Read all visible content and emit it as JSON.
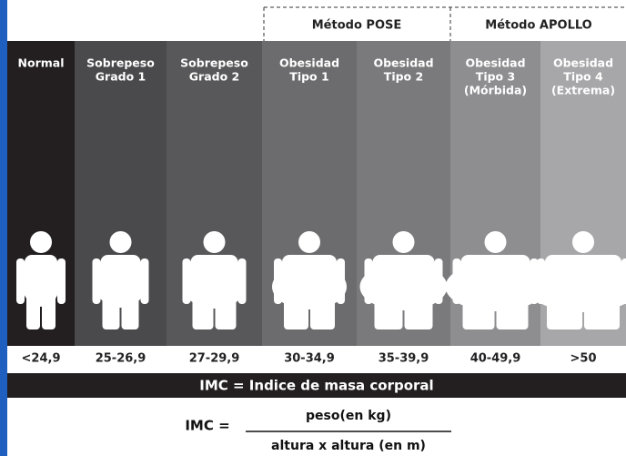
{
  "groups": [
    {
      "label": "Método POSE"
    },
    {
      "label": "Método APOLLO"
    }
  ],
  "columns": [
    {
      "label": [
        "Normal"
      ],
      "range": "<24,9"
    },
    {
      "label": [
        "Sobrepeso",
        "Grado 1"
      ],
      "range": "25-26,9"
    },
    {
      "label": [
        "Sobrepeso",
        "Grado 2"
      ],
      "range": "27-29,9"
    },
    {
      "label": [
        "Obesidad",
        "Tipo 1"
      ],
      "range": "30-34,9"
    },
    {
      "label": [
        "Obesidad",
        "Tipo 2"
      ],
      "range": "35-39,9"
    },
    {
      "label": [
        "Obesidad",
        "Tipo 3",
        "(Mórbida)"
      ],
      "range": "40-49,9"
    },
    {
      "label": [
        "Obesidad",
        "Tipo 4",
        "(Extrema)"
      ],
      "range": ">50"
    }
  ],
  "footer": {
    "title": "IMC = Indice de masa corporal"
  },
  "formula": {
    "lhs": "IMC =",
    "numerator": "peso(en kg)",
    "denominator": "altura x altura (en m)"
  }
}
